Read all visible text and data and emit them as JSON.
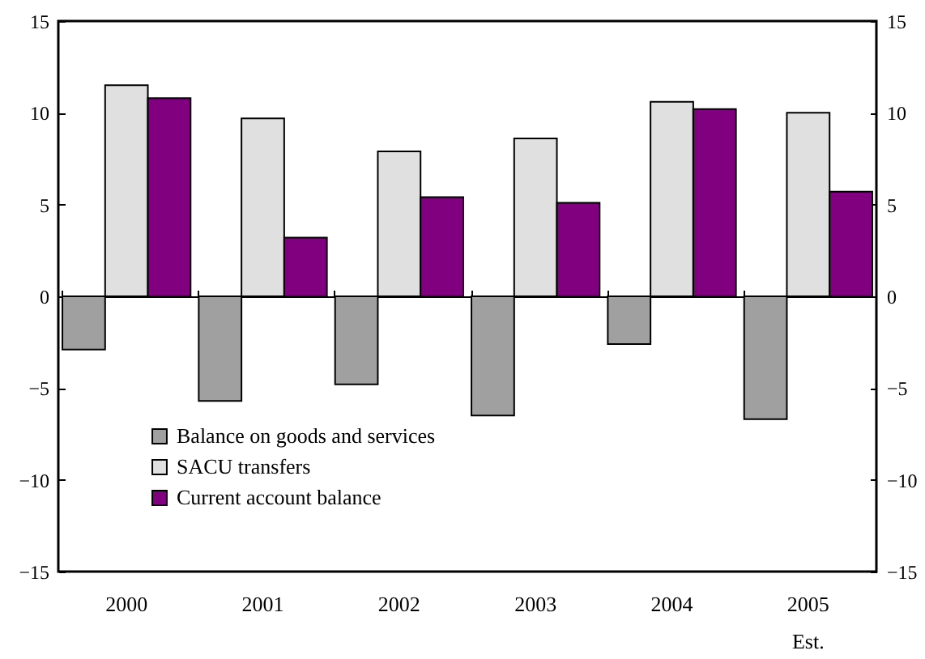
{
  "chart_data": {
    "type": "bar",
    "categories": [
      "2000",
      "2001",
      "2002",
      "2003",
      "2004",
      "2005\nEst."
    ],
    "series": [
      {
        "name": "Balance on goods and services",
        "color": "#a0a0a0",
        "values": [
          -2.9,
          -5.7,
          -4.8,
          -6.5,
          -2.6,
          -6.7
        ]
      },
      {
        "name": "SACU transfers",
        "color": "#e0e0e0",
        "values": [
          11.5,
          9.7,
          7.9,
          8.6,
          10.6,
          10.0
        ]
      },
      {
        "name": "Current account balance",
        "color": "#800080",
        "values": [
          10.8,
          3.2,
          5.4,
          5.1,
          10.2,
          5.7
        ]
      }
    ],
    "ylim": [
      -15,
      15
    ],
    "yticks": [
      -15,
      -10,
      -5,
      0,
      5,
      10,
      15
    ],
    "y2lim": [
      -15,
      15
    ],
    "y2ticks": [
      -15,
      -10,
      -5,
      0,
      5,
      10,
      15
    ],
    "legend": "bottom left"
  }
}
